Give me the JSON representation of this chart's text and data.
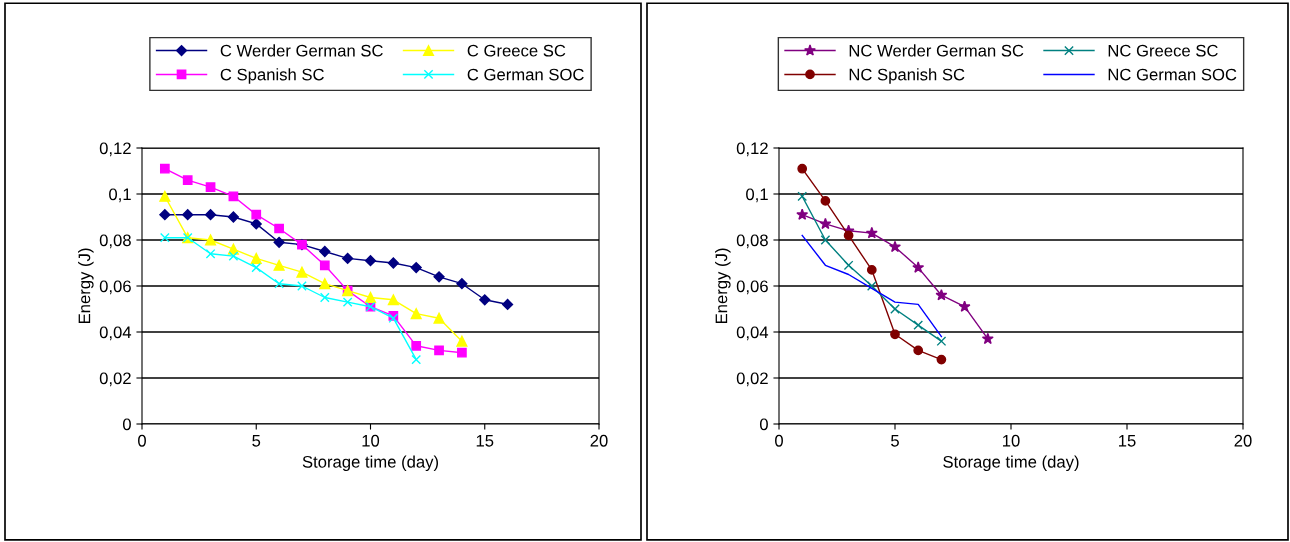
{
  "chart_data": [
    {
      "type": "line",
      "xlabel": "Storage time (day)",
      "ylabel": "Energy (J)",
      "xlim": [
        0,
        20
      ],
      "xticks": [
        0,
        5,
        10,
        15,
        20
      ],
      "ylim": [
        0,
        0.12
      ],
      "yticks": [
        0,
        {
          "value": 0.02,
          "label": "0,02"
        },
        {
          "value": 0.04,
          "label": "0,04"
        },
        {
          "value": 0.06,
          "label": "0,06"
        },
        {
          "value": 0.08,
          "label": "0,08"
        },
        {
          "value": 0.1,
          "label": "0,1"
        },
        {
          "value": 0.12,
          "label": "0,12"
        }
      ],
      "grid": "y",
      "legend": "top",
      "series": [
        {
          "name": "C Werder German SC",
          "color": "#000080",
          "marker": "diamond",
          "x": [
            1,
            2,
            3,
            4,
            5,
            6,
            7,
            8,
            9,
            10,
            11,
            12,
            13,
            14,
            15,
            16
          ],
          "values": [
            0.091,
            0.091,
            0.091,
            0.09,
            0.087,
            0.079,
            0.078,
            0.075,
            0.072,
            0.071,
            0.07,
            0.068,
            0.064,
            0.061,
            0.054,
            0.052
          ]
        },
        {
          "name": "C Spanish SC",
          "color": "#ff00ff",
          "marker": "square",
          "x": [
            1,
            2,
            3,
            4,
            5,
            6,
            7,
            8,
            9,
            10,
            11,
            12,
            13,
            14
          ],
          "values": [
            0.111,
            0.106,
            0.103,
            0.099,
            0.091,
            0.085,
            0.078,
            0.069,
            0.058,
            0.051,
            0.047,
            0.034,
            0.032,
            0.031
          ]
        },
        {
          "name": "C Greece SC",
          "color": "#ffff00",
          "marker": "triangle",
          "x": [
            1,
            2,
            3,
            4,
            5,
            6,
            7,
            8,
            9,
            10,
            11,
            12,
            13,
            14
          ],
          "values": [
            0.099,
            0.081,
            0.08,
            0.076,
            0.072,
            0.069,
            0.066,
            0.061,
            0.058,
            0.055,
            0.054,
            0.048,
            0.046,
            0.036
          ]
        },
        {
          "name": "C German SOC",
          "color": "#00ffff",
          "marker": "cross",
          "x": [
            1,
            2,
            3,
            4,
            5,
            6,
            7,
            8,
            9,
            10,
            11,
            12
          ],
          "values": [
            0.081,
            0.081,
            0.074,
            0.073,
            0.068,
            0.061,
            0.06,
            0.055,
            0.053,
            0.051,
            0.046,
            0.028
          ]
        }
      ]
    },
    {
      "type": "line",
      "xlabel": "Storage time (day)",
      "ylabel": "Energy (J)",
      "xlim": [
        0,
        20
      ],
      "xticks": [
        0,
        5,
        10,
        15,
        20
      ],
      "ylim": [
        0,
        0.12
      ],
      "yticks": [
        0,
        {
          "value": 0.02,
          "label": "0,02"
        },
        {
          "value": 0.04,
          "label": "0,04"
        },
        {
          "value": 0.06,
          "label": "0,06"
        },
        {
          "value": 0.08,
          "label": "0,08"
        },
        {
          "value": 0.1,
          "label": "0,1"
        },
        {
          "value": 0.12,
          "label": "0,12"
        }
      ],
      "grid": "y",
      "legend": "top",
      "series": [
        {
          "name": "NC Werder German SC",
          "color": "#800080",
          "marker": "star",
          "x": [
            1,
            2,
            3,
            4,
            5,
            6,
            7,
            8,
            9
          ],
          "values": [
            0.091,
            0.087,
            0.084,
            0.083,
            0.077,
            0.068,
            0.056,
            0.051,
            0.037
          ]
        },
        {
          "name": "NC Spanish SC",
          "color": "#800000",
          "marker": "circle",
          "x": [
            1,
            2,
            3,
            4,
            5,
            6,
            7
          ],
          "values": [
            0.111,
            0.097,
            0.082,
            0.067,
            0.039,
            0.032,
            0.028
          ]
        },
        {
          "name": "NC Greece SC",
          "color": "#008080",
          "marker": "cross",
          "x": [
            1,
            2,
            3,
            4,
            5,
            6,
            7
          ],
          "values": [
            0.099,
            0.08,
            0.069,
            0.06,
            0.05,
            0.043,
            0.036
          ]
        },
        {
          "name": "NC German SOC",
          "color": "#0000ff",
          "marker": "none",
          "x": [
            1,
            2,
            3,
            4,
            5,
            6,
            7
          ],
          "values": [
            0.082,
            0.069,
            0.065,
            0.059,
            0.053,
            0.052,
            0.038
          ]
        }
      ]
    }
  ]
}
